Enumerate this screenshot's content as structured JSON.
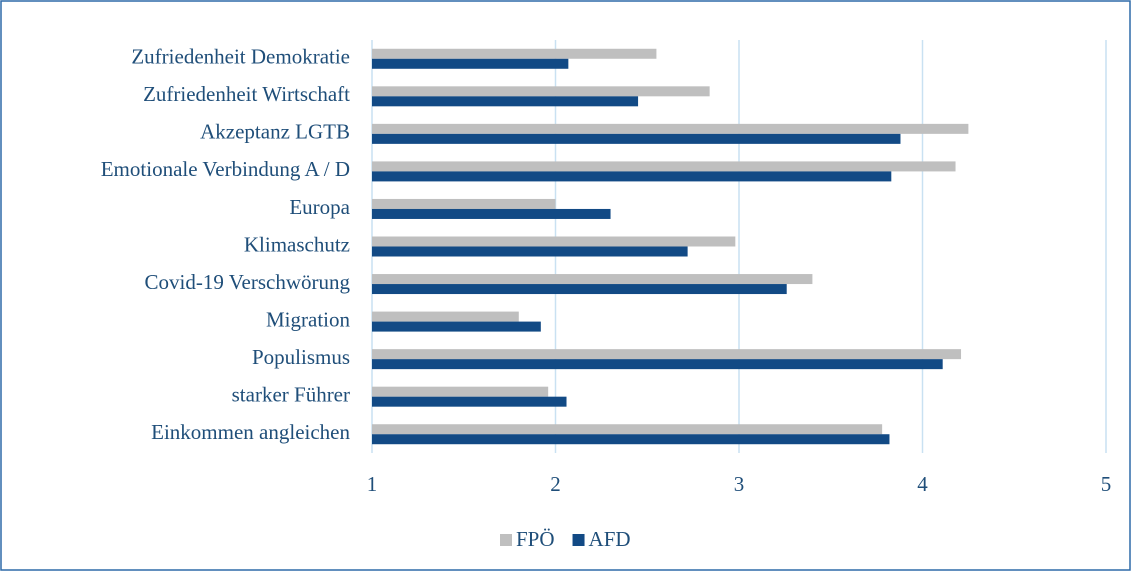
{
  "chart_data": {
    "type": "bar",
    "orientation": "horizontal",
    "categories": [
      "Zufriedenheit Demokratie",
      "Zufriedenheit Wirtschaft",
      "Akzeptanz LGTB",
      "Emotionale Verbindung A / D",
      "Europa",
      "Klimaschutz",
      "Covid-19 Verschwörung",
      "Migration",
      "Populismus",
      "starker Führer",
      "Einkommen angleichen"
    ],
    "series": [
      {
        "name": "FPÖ",
        "color": "#bfbfbf",
        "values": [
          2.55,
          2.84,
          4.25,
          4.18,
          2.0,
          2.98,
          3.4,
          1.8,
          4.21,
          1.96,
          3.78
        ]
      },
      {
        "name": "AFD",
        "color": "#124a85",
        "values": [
          2.07,
          2.45,
          3.88,
          3.83,
          2.3,
          2.72,
          3.26,
          1.92,
          4.11,
          2.06,
          3.82
        ]
      }
    ],
    "xlim": [
      1,
      5
    ],
    "xticks": [
      1,
      2,
      3,
      4,
      5
    ],
    "grid": true,
    "legend": "bottom"
  }
}
